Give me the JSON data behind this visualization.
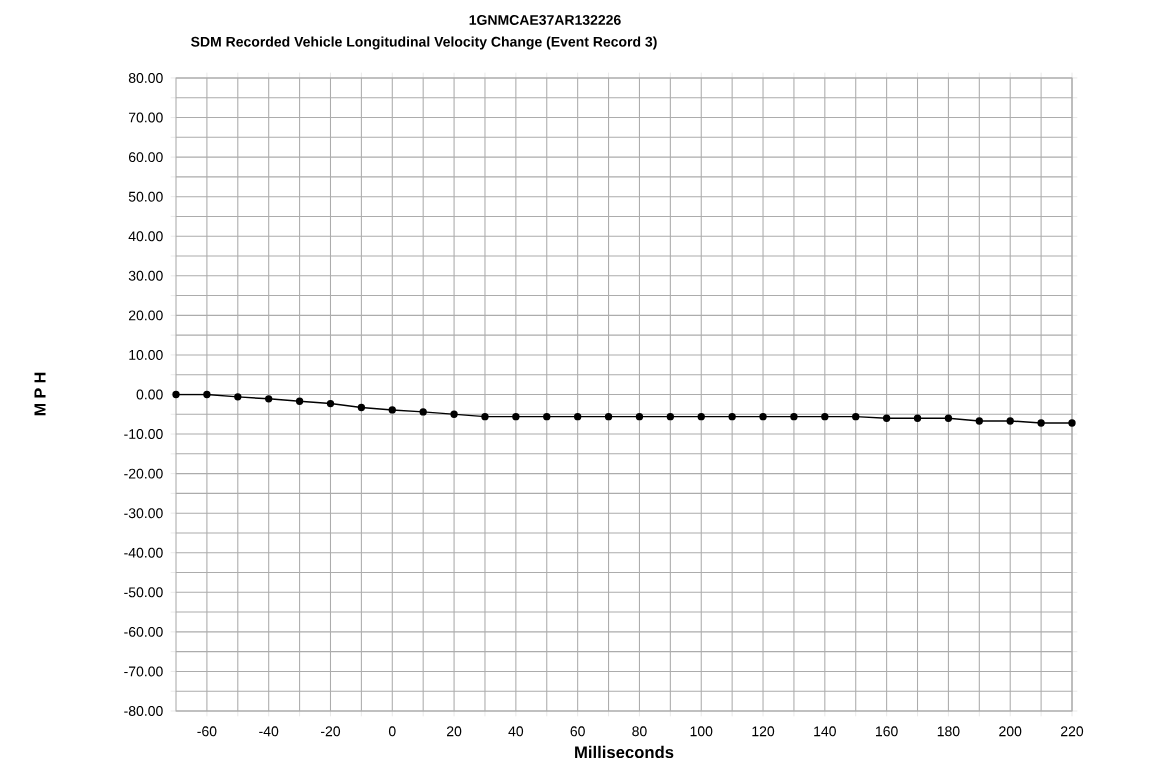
{
  "chart_data": {
    "type": "line",
    "title": "1GNMCAE37AR132226",
    "subtitle": "SDM Recorded Vehicle Longitudinal Velocity Change (Event Record 3)",
    "xlabel": "Milliseconds",
    "ylabel": "M P H",
    "x": [
      -70,
      -60,
      -50,
      -40,
      -30,
      -20,
      -10,
      0,
      10,
      20,
      30,
      40,
      50,
      60,
      70,
      80,
      90,
      100,
      110,
      120,
      130,
      140,
      150,
      160,
      170,
      180,
      190,
      200,
      210,
      220
    ],
    "series": [
      {
        "color": "#000000",
        "values": [
          0,
          0,
          -0.6,
          -1.1,
          -1.7,
          -2.3,
          -3.3,
          -3.9,
          -4.4,
          -5.0,
          -5.6,
          -5.6,
          -5.6,
          -5.6,
          -5.6,
          -5.6,
          -5.6,
          -5.6,
          -5.6,
          -5.6,
          -5.6,
          -5.6,
          -5.6,
          -6.0,
          -6.0,
          -6.0,
          -6.7,
          -6.7,
          -7.2,
          -7.2
        ]
      }
    ],
    "xlim": [
      -70,
      220
    ],
    "ylim": [
      -80,
      80
    ],
    "xticks": [
      -60,
      {
        "value": -50,
        "label": null
      },
      -40,
      {
        "value": -30,
        "label": null
      },
      -20,
      {
        "value": -10,
        "label": null
      },
      0,
      {
        "value": 10,
        "label": null
      },
      20,
      {
        "value": 30,
        "label": null
      },
      40,
      {
        "value": 50,
        "label": null
      },
      60,
      {
        "value": 70,
        "label": null
      },
      80,
      {
        "value": 90,
        "label": null
      },
      100,
      {
        "value": 110,
        "label": null
      },
      120,
      {
        "value": 130,
        "label": null
      },
      140,
      {
        "value": 150,
        "label": null
      },
      160,
      {
        "value": 170,
        "label": null
      },
      180,
      {
        "value": 190,
        "label": null
      },
      200,
      {
        "value": 210,
        "label": null
      },
      220
    ],
    "yticks": [
      {
        "value": -80,
        "label": "-80.00"
      },
      {
        "value": -75,
        "label": null
      },
      {
        "value": -70,
        "label": "-70.00"
      },
      {
        "value": -65,
        "label": null
      },
      {
        "value": -60,
        "label": "-60.00"
      },
      {
        "value": -55,
        "label": null
      },
      {
        "value": -50,
        "label": "-50.00"
      },
      {
        "value": -45,
        "label": null
      },
      {
        "value": -40,
        "label": "-40.00"
      },
      {
        "value": -35,
        "label": null
      },
      {
        "value": -30,
        "label": "-30.00"
      },
      {
        "value": -25,
        "label": null
      },
      {
        "value": -20,
        "label": "-20.00"
      },
      {
        "value": -15,
        "label": null
      },
      {
        "value": -10,
        "label": "-10.00"
      },
      {
        "value": -5,
        "label": null
      },
      {
        "value": 0,
        "label": "0.00"
      },
      {
        "value": 5,
        "label": null
      },
      {
        "value": 10,
        "label": "10.00"
      },
      {
        "value": 15,
        "label": null
      },
      {
        "value": 20,
        "label": "20.00"
      },
      {
        "value": 25,
        "label": null
      },
      {
        "value": 30,
        "label": "30.00"
      },
      {
        "value": 35,
        "label": null
      },
      {
        "value": 40,
        "label": "40.00"
      },
      {
        "value": 45,
        "label": null
      },
      {
        "value": 50,
        "label": "50.00"
      },
      {
        "value": 55,
        "label": null
      },
      {
        "value": 60,
        "label": "60.00"
      },
      {
        "value": 65,
        "label": null
      },
      {
        "value": 70,
        "label": "70.00"
      },
      {
        "value": 75,
        "label": null
      },
      {
        "value": 80,
        "label": "80.00"
      }
    ],
    "grid": true,
    "marker": "circle",
    "line_style": "solid"
  }
}
